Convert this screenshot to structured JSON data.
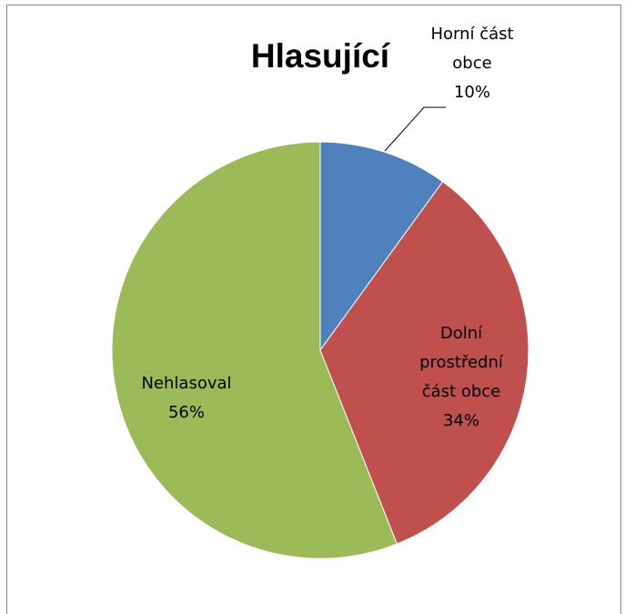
{
  "chart_data": {
    "type": "pie",
    "title": "Hlasující",
    "categories": [
      "Horní část obce",
      "Dolní prostřední část obce",
      "Nehlasoval"
    ],
    "values": [
      10,
      34,
      56
    ],
    "value_labels": [
      "10%",
      "34%",
      "56%"
    ],
    "colors": [
      "#4f81bd",
      "#c0504d",
      "#9bbb59"
    ]
  }
}
